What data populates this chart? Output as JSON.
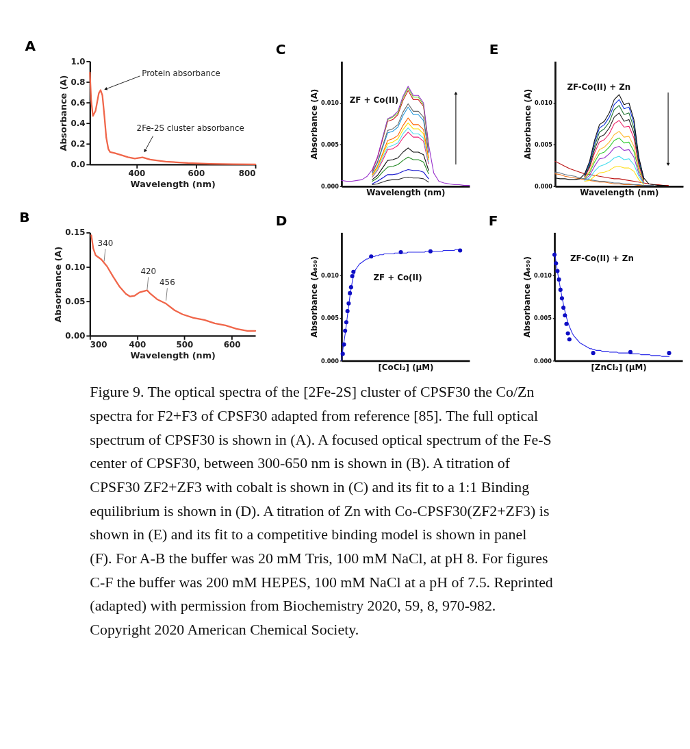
{
  "chart_data": [
    {
      "type": "line",
      "title": "A",
      "xlabel": "Wavelength (nm)",
      "ylabel": "Absorbance (A)",
      "color": "#f0664a",
      "x": [
        243,
        247,
        253,
        262,
        273,
        279,
        285,
        292,
        298,
        305,
        311,
        326,
        349,
        371,
        394,
        420,
        446,
        498,
        573,
        649,
        724,
        800
      ],
      "values": [
        0.89,
        0.63,
        0.47,
        0.52,
        0.69,
        0.72,
        0.67,
        0.46,
        0.26,
        0.15,
        0.12,
        0.11,
        0.09,
        0.07,
        0.057,
        0.068,
        0.047,
        0.027,
        0.014,
        0.006,
        0.002,
        0.0
      ],
      "xlim": [
        243,
        800
      ],
      "xticks": [
        400,
        600,
        800
      ],
      "ylim": [
        0,
        1
      ],
      "yticks": [
        {
          "value": 0,
          "label": "0.0"
        },
        0.2,
        0.4,
        0.6,
        0.8,
        {
          "value": 1,
          "label": "1.0"
        }
      ],
      "annotations": [
        {
          "text": "Protein absorbance",
          "x": 296,
          "y": 0.73
        },
        {
          "text": "2Fe-2S cluster absorbance",
          "x": 428,
          "y": 0.13
        }
      ]
    },
    {
      "type": "line",
      "title": "C",
      "xlabel": "Wavelength (nm)",
      "ylabel": "Absorbance (A)",
      "tick_labels": "y",
      "categories": [
        null,
        null,
        null,
        null,
        null,
        null,
        null,
        null,
        null,
        null,
        null,
        null,
        null,
        null,
        null,
        null,
        null,
        null,
        null,
        null,
        null,
        null,
        null,
        null,
        null,
        null
      ],
      "ylim": [
        0,
        0.015
      ],
      "yticks": [
        {
          "value": 0,
          "label": "0.000"
        },
        0.005,
        {
          "value": 0.01,
          "label": "0.010"
        }
      ],
      "annotations": [
        "ZF + Co(II)"
      ],
      "series": [
        {
          "color": "#9933cc",
          "values": [
            0.0007,
            0.0006,
            0.0006,
            0.0007,
            0.0008,
            0.0012,
            0.002,
            0.0035,
            0.0058,
            0.0081,
            0.0084,
            0.009,
            0.0108,
            0.012,
            0.0109,
            0.0109,
            0.01,
            0.005,
            0.0016,
            0.0006,
            0.0004,
            0.0003,
            0.0002,
            0.0002,
            0.0001,
            0.0001
          ]
        },
        {
          "color": "#66dd22",
          "values": [
            null,
            null,
            null,
            null,
            null,
            null,
            null,
            null,
            0.0057,
            0.008,
            0.0083,
            0.0088,
            0.0106,
            0.0118,
            0.0107,
            0.0107,
            0.0098,
            0.0049,
            null,
            null,
            null,
            null,
            null,
            null,
            null,
            null
          ]
        },
        {
          "color": "#cc2222",
          "values": [
            null,
            null,
            null,
            null,
            null,
            null,
            0.0019,
            0.0034,
            0.0056,
            0.0078,
            0.008,
            0.0086,
            0.0103,
            0.0115,
            0.0104,
            0.0104,
            0.0096,
            0.0048,
            null,
            null,
            null,
            null,
            null,
            null,
            null,
            null
          ]
        },
        {
          "color": "#666666",
          "values": [
            null,
            null,
            null,
            null,
            null,
            null,
            0.0017,
            0.0029,
            0.0048,
            0.0067,
            0.0069,
            0.0074,
            0.0089,
            0.0099,
            0.009,
            0.009,
            0.0083,
            0.0041,
            null,
            null,
            null,
            null,
            null,
            null,
            null,
            null
          ]
        },
        {
          "color": "#2299dd",
          "values": [
            null,
            null,
            null,
            null,
            null,
            null,
            0.0016,
            0.0028,
            0.0046,
            0.0064,
            0.0066,
            0.0071,
            0.0085,
            0.0095,
            0.0086,
            0.0086,
            0.0079,
            0.004,
            null,
            null,
            null,
            null,
            null,
            null,
            null,
            null
          ]
        },
        {
          "color": "#ff6600",
          "values": [
            null,
            null,
            null,
            null,
            null,
            null,
            0.0014,
            0.0024,
            0.0039,
            0.0055,
            0.0057,
            0.0061,
            0.0073,
            0.0082,
            0.0074,
            0.0074,
            0.0068,
            0.0034,
            null,
            null,
            null,
            null,
            null,
            null,
            null,
            null
          ]
        },
        {
          "color": "#ffdd00",
          "values": [
            null,
            null,
            null,
            null,
            null,
            null,
            0.0013,
            0.0022,
            0.0037,
            0.0051,
            0.0053,
            0.0057,
            0.0068,
            0.0076,
            0.0069,
            0.0069,
            0.0063,
            0.0032,
            null,
            null,
            null,
            null,
            null,
            null,
            null,
            null
          ]
        },
        {
          "color": "#55ddee",
          "values": [
            null,
            null,
            null,
            null,
            null,
            null,
            0.0012,
            0.002,
            0.0034,
            0.0047,
            0.0049,
            0.0052,
            0.0063,
            0.007,
            0.0063,
            0.0063,
            0.0058,
            0.0029,
            null,
            null,
            null,
            null,
            null,
            null,
            null,
            null
          ]
        },
        {
          "color": "#ee2277",
          "values": [
            null,
            null,
            null,
            null,
            null,
            null,
            0.0011,
            0.0019,
            0.0031,
            0.0044,
            0.0045,
            0.0049,
            0.0058,
            0.0065,
            0.0059,
            0.0059,
            0.0054,
            0.0027,
            null,
            null,
            null,
            null,
            null,
            null,
            null,
            null
          ]
        },
        {
          "color": "#111111",
          "values": [
            null,
            null,
            null,
            null,
            null,
            null,
            0.0008,
            0.0013,
            0.0022,
            0.0031,
            0.0032,
            0.0034,
            0.0041,
            0.0046,
            0.0041,
            0.0041,
            0.0038,
            0.0019,
            null,
            null,
            null,
            null,
            null,
            null,
            null,
            null
          ]
        },
        {
          "color": "#228822",
          "values": [
            null,
            null,
            null,
            null,
            null,
            null,
            0.0006,
            0.001,
            0.0017,
            0.0023,
            0.0024,
            0.0026,
            0.0031,
            0.0035,
            0.0032,
            0.0032,
            0.0029,
            0.0015,
            null,
            null,
            null,
            null,
            null,
            null,
            null,
            null
          ]
        },
        {
          "color": "#1111cc",
          "values": [
            null,
            null,
            null,
            null,
            null,
            null,
            0.0003,
            0.0006,
            0.001,
            0.0014,
            0.0014,
            0.0015,
            0.0018,
            0.002,
            0.0019,
            0.0019,
            0.0017,
            0.0009,
            null,
            null,
            null,
            null,
            null,
            null,
            null,
            null
          ]
        },
        {
          "color": "#333333",
          "values": [
            null,
            null,
            null,
            null,
            null,
            null,
            0.0002,
            0.0003,
            0.0005,
            0.0007,
            0.0008,
            0.0008,
            0.001,
            0.0011,
            0.001,
            0.001,
            0.0009,
            0.0005,
            null,
            null,
            null,
            null,
            null,
            null,
            null,
            null
          ]
        }
      ]
    },
    {
      "type": "line",
      "title": "E",
      "xlabel": "Wavelength (nm)",
      "ylabel": "Absorbance (A)",
      "tick_labels": "y",
      "categories": [
        null,
        null,
        null,
        null,
        null,
        null,
        null,
        null,
        null,
        null,
        null,
        null,
        null,
        null,
        null,
        null,
        null,
        null,
        null,
        null,
        null,
        null,
        null,
        null,
        null,
        null,
        null
      ],
      "ylim": [
        0,
        0.015
      ],
      "yticks": [
        {
          "value": 0,
          "label": "0.000"
        },
        0.005,
        {
          "value": 0.01,
          "label": "0.010"
        }
      ],
      "annotations": [
        "ZF-Co(II) + Zn"
      ],
      "series": [
        {
          "color": "#111111",
          "values": [
            0.001,
            0.0009,
            0.0009,
            0.0008,
            0.0008,
            0.0009,
            0.0015,
            0.003,
            0.0055,
            0.0074,
            0.0078,
            0.0088,
            0.0104,
            0.011,
            0.0098,
            0.01,
            0.008,
            0.0035,
            0.001,
            0.0003,
            0.0002,
            0.0001,
            0.0001,
            0.0,
            0.0,
            0.0,
            0.0
          ]
        },
        {
          "color": "#1133dd",
          "values": [
            null,
            null,
            null,
            null,
            null,
            null,
            0.0014,
            0.0028,
            0.0052,
            0.007,
            0.0074,
            0.0083,
            0.0098,
            0.0104,
            0.0093,
            0.0095,
            0.0076,
            0.0033,
            0.001,
            null,
            null,
            null,
            null,
            null,
            null,
            null,
            null
          ]
        },
        {
          "color": "#227733",
          "values": [
            null,
            null,
            null,
            null,
            null,
            null,
            0.0013,
            0.0026,
            0.0048,
            0.0065,
            0.0069,
            0.0077,
            0.0092,
            0.0097,
            0.0086,
            0.0088,
            0.007,
            0.0031,
            0.0009,
            null,
            null,
            null,
            null,
            null,
            null,
            null,
            null
          ]
        },
        {
          "color": "#222222",
          "values": [
            null,
            null,
            null,
            null,
            null,
            null,
            0.0012,
            0.0024,
            0.0044,
            0.0059,
            0.0062,
            0.007,
            0.0083,
            0.0088,
            0.0078,
            0.008,
            0.0064,
            0.0028,
            0.0008,
            null,
            null,
            null,
            null,
            null,
            null,
            null,
            null
          ]
        },
        {
          "color": "#ee2266",
          "values": [
            null,
            null,
            null,
            null,
            null,
            null,
            0.0011,
            0.0022,
            0.004,
            0.0053,
            0.0056,
            0.0063,
            0.0075,
            0.0079,
            0.0071,
            0.0072,
            0.0058,
            0.0025,
            0.0007,
            null,
            null,
            null,
            null,
            null,
            null,
            null,
            null
          ]
        },
        {
          "color": "#ffbb33",
          "values": [
            null,
            null,
            null,
            null,
            null,
            null,
            0.001,
            0.0018,
            0.0033,
            0.0044,
            0.0047,
            0.0053,
            0.0062,
            0.0066,
            0.0059,
            0.006,
            0.0048,
            0.0021,
            0.0006,
            null,
            null,
            null,
            null,
            null,
            null,
            null,
            null
          ]
        },
        {
          "color": "#33cc33",
          "values": [
            null,
            null,
            null,
            null,
            null,
            null,
            0.0009,
            0.0016,
            0.0029,
            0.0039,
            0.0041,
            0.0047,
            0.0055,
            0.0058,
            0.0052,
            0.0053,
            0.0042,
            0.0019,
            0.0005,
            null,
            null,
            null,
            null,
            null,
            null,
            null,
            null
          ]
        },
        {
          "color": "#9933cc",
          "values": [
            null,
            null,
            null,
            null,
            null,
            null,
            0.0008,
            0.0013,
            0.0024,
            0.0033,
            0.0034,
            0.0039,
            0.0046,
            0.0048,
            0.0043,
            0.0044,
            0.0035,
            0.0015,
            0.0004,
            null,
            null,
            null,
            null,
            null,
            null,
            null,
            null
          ]
        },
        {
          "color": "#44ddee",
          "values": [
            null,
            null,
            null,
            null,
            null,
            null,
            0.0007,
            0.001,
            0.0018,
            0.0024,
            0.0026,
            0.0029,
            0.0034,
            0.0036,
            0.0032,
            0.0033,
            0.0026,
            0.0012,
            0.0003,
            null,
            null,
            null,
            null,
            null,
            null,
            null,
            null
          ]
        },
        {
          "color": "#ffe022",
          "values": [
            null,
            null,
            null,
            null,
            null,
            null,
            0.0006,
            0.0007,
            0.0012,
            0.0016,
            0.0017,
            0.0019,
            0.0023,
            0.0024,
            0.0022,
            0.0022,
            0.0018,
            0.0008,
            0.0002,
            null,
            null,
            null,
            null,
            null,
            null,
            null,
            null
          ]
        },
        {
          "color": "#bb1111",
          "values": [
            0.003,
            0.0027,
            0.0024,
            0.0021,
            0.0019,
            0.0017,
            0.0015,
            0.0014,
            0.0013,
            0.0012,
            0.0011,
            0.001,
            0.0009,
            0.0009,
            0.0008,
            0.0007,
            0.0006,
            0.0005,
            0.0004,
            0.0003,
            0.0002,
            0.0002,
            0.0001,
            0.0001,
            null,
            null,
            null
          ]
        },
        {
          "color": "#667788",
          "values": [
            0.0017,
            0.0016,
            0.0014,
            0.0013,
            0.0012,
            0.001,
            0.0009,
            0.0008,
            0.0007,
            0.0006,
            0.0006,
            0.0005,
            0.0004,
            0.0004,
            0.0003,
            0.0003,
            0.0002,
            0.0002,
            0.0001,
            0.0001,
            0.0001,
            null,
            null,
            null,
            null,
            null,
            null
          ]
        },
        {
          "color": "#ee7722",
          "values": [
            0.0015,
            0.0014,
            0.0012,
            0.0011,
            0.001,
            0.0009,
            0.0008,
            0.0007,
            0.0006,
            0.0005,
            0.0005,
            0.0004,
            0.0003,
            0.0003,
            0.0002,
            0.0002,
            0.0002,
            0.0001,
            0.0001,
            null,
            null,
            null,
            null,
            null,
            null,
            null,
            null
          ]
        }
      ]
    },
    {
      "type": "line",
      "title": "B",
      "xlabel": "Wavelength (nm)",
      "ylabel": "Absorbance (A)",
      "color": "#f0664a",
      "x": [
        303,
        307,
        312,
        324,
        336,
        349,
        362,
        376,
        385,
        394,
        405,
        421,
        428,
        442,
        460,
        479,
        496,
        519,
        542,
        564,
        587,
        610,
        633,
        650
      ],
      "values": [
        0.146,
        0.127,
        0.117,
        0.111,
        0.101,
        0.086,
        0.072,
        0.061,
        0.057,
        0.058,
        0.063,
        0.066,
        0.061,
        0.053,
        0.047,
        0.037,
        0.031,
        0.026,
        0.023,
        0.018,
        0.015,
        0.01,
        0.007,
        0.007
      ],
      "xlim": [
        300,
        650
      ],
      "xticks": [
        300,
        400,
        500,
        600
      ],
      "ylim": [
        0,
        0.15
      ],
      "yticks": [
        {
          "value": 0,
          "label": "0.00"
        },
        0.05,
        {
          "value": 0.1,
          "label": "0.10"
        },
        0.15
      ],
      "annotations": [
        {
          "text": "340",
          "x": 330,
          "y": 0.108
        },
        {
          "text": "420",
          "x": 421,
          "y": 0.067
        },
        {
          "text": "456",
          "x": 461,
          "y": 0.051
        }
      ]
    },
    {
      "type": "line",
      "title": "D",
      "xlabel": "[CoCl₂] (μM)",
      "ylabel": "Absorbance (A₆₅₀)",
      "tick_labels": "y",
      "categories": [
        null,
        null,
        null,
        null,
        null,
        null,
        null,
        null,
        null,
        null,
        null,
        null,
        null,
        null,
        null,
        null,
        null,
        null,
        null,
        null,
        null,
        null,
        null,
        null,
        null,
        null,
        null,
        null,
        null,
        null,
        null,
        null,
        null,
        null,
        null,
        null,
        null,
        null,
        null,
        null,
        null,
        null,
        null,
        null,
        null,
        null,
        null,
        null,
        null,
        null,
        null,
        null,
        null,
        null,
        null,
        null,
        null,
        null,
        null,
        null,
        null,
        null,
        null,
        null,
        null,
        null,
        null,
        null,
        null,
        null,
        null,
        null,
        null,
        null,
        null,
        null,
        null,
        null,
        null,
        null,
        null,
        null,
        null,
        null,
        null,
        null,
        null,
        null,
        null,
        null,
        null,
        null,
        null,
        null,
        null,
        null,
        null,
        null,
        null,
        null,
        null,
        null,
        null,
        null,
        null,
        null,
        null,
        null,
        null
      ],
      "ylim": [
        0,
        0.015
      ],
      "yticks": [
        {
          "value": 0,
          "label": "0.000"
        },
        0.005,
        {
          "value": 0.01,
          "label": "0.010"
        }
      ],
      "annotations": [
        "ZF + Co(II)"
      ],
      "series": [
        {
          "type": "scatter",
          "marker": "circle",
          "color": "#0e0ec4",
          "values": [
            null,
            0.0008,
            0.0019,
            0.0035,
            0.0045,
            0.0058,
            0.0067,
            0.0079,
            0.0086,
            0.0099,
            0.0104,
            null,
            null,
            null,
            null,
            null,
            null,
            null,
            null,
            null,
            null,
            null,
            null,
            null,
            null,
            0.0122,
            null,
            null,
            null,
            null,
            null,
            null,
            null,
            null,
            null,
            null,
            null,
            null,
            null,
            null,
            null,
            null,
            null,
            null,
            null,
            null,
            null,
            null,
            null,
            null,
            0.0127,
            null,
            null,
            null,
            null,
            null,
            null,
            null,
            null,
            null,
            null,
            null,
            null,
            null,
            null,
            null,
            null,
            null,
            null,
            null,
            null,
            null,
            null,
            null,
            null,
            0.0128,
            null,
            null,
            null,
            null,
            null,
            null,
            null,
            null,
            null,
            null,
            null,
            null,
            null,
            null,
            null,
            null,
            null,
            null,
            null,
            null,
            null,
            null,
            null,
            null,
            0.0129,
            null,
            null,
            null,
            null,
            null,
            null,
            null,
            null
          ]
        },
        {
          "color": "#2a2ae8",
          "values": [
            0.0,
            0.0012,
            0.0022,
            0.0031,
            0.0042,
            0.0053,
            0.0064,
            0.0075,
            0.0084,
            0.0092,
            0.0099,
            0.0104,
            0.0107,
            0.0109,
            0.0111,
            0.0113,
            0.0114,
            0.0115,
            0.0116,
            0.0117,
            0.0118,
            0.0119,
            0.0119,
            0.012,
            0.0121,
            0.0121,
            0.0122,
            0.0122,
            0.0122,
            0.0123,
            0.0123,
            0.0123,
            0.0124,
            0.0124,
            0.0124,
            0.0124,
            0.0125,
            0.0125,
            0.0125,
            0.0125,
            0.0125,
            0.0125,
            0.0125,
            0.0125,
            0.0125,
            0.0126,
            0.0126,
            0.0126,
            0.0126,
            0.0126,
            0.0126,
            0.0126,
            0.0126,
            0.0126,
            0.0126,
            0.0126,
            0.0127,
            0.0127,
            0.0127,
            0.0127,
            0.0127,
            0.0127,
            0.0127,
            0.0127,
            0.0127,
            0.0127,
            0.0127,
            0.0127,
            0.0127,
            0.0127,
            0.0127,
            0.0128,
            0.0128,
            0.0128,
            0.0128,
            0.0128,
            0.0128,
            0.0128,
            0.0128,
            0.0128,
            0.0128,
            0.0128,
            0.0128,
            0.0128,
            0.0128,
            0.0128,
            0.0129,
            0.0129,
            0.0129,
            0.0129,
            0.0129,
            0.0129,
            0.0129,
            0.0129,
            0.0129,
            0.0129,
            0.013,
            0.013,
            0.013,
            0.013,
            0.013,
            0.013,
            null,
            null,
            null,
            null,
            null,
            null,
            null
          ]
        }
      ]
    },
    {
      "type": "line",
      "title": "F",
      "xlabel": "[ZnCl₂] (μM)",
      "ylabel": "Absorbance (A₆₅₀)",
      "tick_labels": "y",
      "categories": [
        null,
        null,
        null,
        null,
        null,
        null,
        null,
        null,
        null,
        null,
        null,
        null,
        null,
        null,
        null,
        null,
        null,
        null,
        null,
        null,
        null,
        null,
        null,
        null,
        null,
        null,
        null,
        null,
        null,
        null,
        null,
        null,
        null,
        null,
        null,
        null,
        null,
        null,
        null,
        null,
        null,
        null,
        null,
        null,
        null,
        null,
        null,
        null,
        null,
        null,
        null,
        null,
        null,
        null,
        null,
        null,
        null,
        null,
        null,
        null,
        null,
        null,
        null,
        null,
        null,
        null,
        null,
        null,
        null,
        null,
        null,
        null,
        null,
        null,
        null,
        null,
        null,
        null,
        null,
        null,
        null,
        null,
        null,
        null,
        null,
        null,
        null
      ],
      "ylim": [
        0,
        0.015
      ],
      "yticks": [
        {
          "value": 0,
          "label": "0.000"
        },
        0.005,
        {
          "value": 0.01,
          "label": "0.010"
        }
      ],
      "annotations": [
        "ZF-Co(II) + Zn"
      ],
      "series": [
        {
          "type": "scatter",
          "marker": "circle",
          "color": "#0e0ec4",
          "values": [
            0.0124,
            0.0114,
            0.0105,
            0.0095,
            0.0083,
            0.0073,
            0.0062,
            0.0053,
            0.0043,
            0.0032,
            0.0025,
            null,
            null,
            null,
            null,
            null,
            null,
            null,
            null,
            null,
            null,
            null,
            null,
            null,
            null,
            null,
            0.0009,
            null,
            null,
            null,
            null,
            null,
            null,
            null,
            null,
            null,
            null,
            null,
            null,
            null,
            null,
            null,
            null,
            null,
            null,
            null,
            null,
            null,
            null,
            null,
            null,
            0.001,
            null,
            null,
            null,
            null,
            null,
            null,
            null,
            null,
            null,
            null,
            null,
            null,
            null,
            null,
            null,
            null,
            null,
            null,
            null,
            null,
            null,
            null,
            null,
            null,
            null,
            0.0009,
            null,
            null,
            null,
            null,
            null,
            null,
            null,
            null,
            null
          ]
        },
        {
          "color": "#2a2ae8",
          "values": [
            0.0128,
            0.0116,
            0.0104,
            0.0094,
            0.0084,
            0.0075,
            0.0066,
            0.0058,
            0.0051,
            0.0045,
            0.004,
            0.0036,
            0.0032,
            0.0029,
            0.0027,
            0.0025,
            0.0023,
            0.0021,
            0.002,
            0.0019,
            0.0018,
            0.0017,
            0.0016,
            0.0015,
            0.0014,
            0.0014,
            0.0013,
            0.0013,
            0.0012,
            0.0012,
            0.0012,
            0.0012,
            0.0011,
            0.0011,
            0.0011,
            0.0011,
            0.0011,
            0.001,
            0.001,
            0.001,
            0.001,
            0.001,
            0.001,
            0.0009,
            0.0009,
            0.0009,
            0.0009,
            0.0009,
            0.0009,
            0.0009,
            0.0009,
            0.0009,
            0.0008,
            0.0008,
            0.0008,
            0.0008,
            0.0008,
            0.0008,
            0.0007,
            0.0007,
            0.0007,
            0.0007,
            0.0007,
            0.0007,
            0.0007,
            0.0006,
            0.0006,
            0.0006,
            0.0006,
            0.0006,
            0.0006,
            0.0006,
            0.0005,
            0.0005,
            0.0005,
            0.0005,
            0.0005,
            0.0005,
            null,
            null,
            null,
            null,
            null,
            null,
            null,
            null,
            null
          ]
        }
      ]
    },
    {
      "type": "other",
      "annotations": [
        "Figure 9. The optical spectra of the [2Fe-2S] cluster of CPSF30 the Co/Zn spectra for F2+F3 of CPSF30 adapted from reference [85]. The full optical spectrum of CPSF30 is shown in (A). A focused optical spectrum of the Fe-S center of CPSF30, between 300-650 nm is shown in (B). A titration of CPSF30 ZF2+ZF3 with cobalt is shown in (C) and its fit to a 1:1 Binding equilibrium is shown in (D). A titration of Zn with Co-CPSF30(ZF2+ZF3) is shown in (E) and its fit to a competitive binding model is shown in panel (F). For A-B the buffer was 20 mM Tris, 100 mM NaCl, at pH 8. For figures C-F the buffer was 200 mM HEPES, 100 mM NaCl at a pH of 7.5. Reprinted (adapted) with permission from Biochemistry 2020, 59, 8, 970-982. Copyright 2020 American Chemical Society."
      ]
    }
  ]
}
